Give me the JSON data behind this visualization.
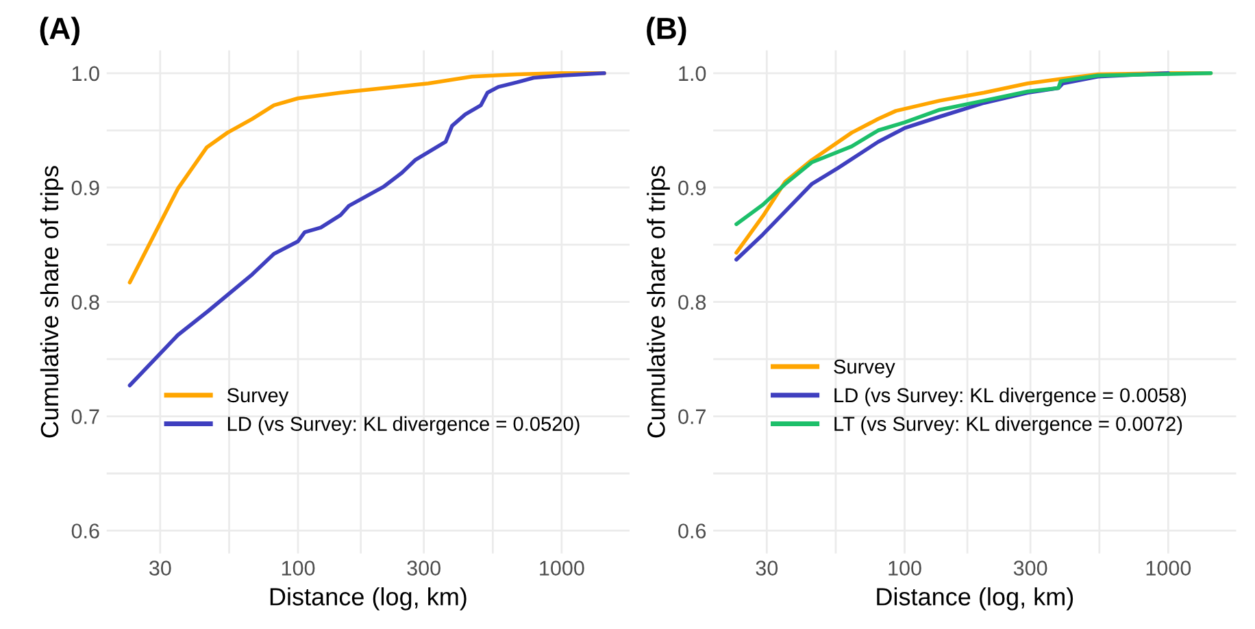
{
  "chart_data": [
    {
      "type": "line",
      "title": "(A)",
      "xlabel": "Distance (log, km)",
      "ylabel": "Cumulative share of trips",
      "log": "x",
      "grid": true,
      "legend": "bottom left",
      "xlim": [
        18.8,
        1810
      ],
      "ylim": [
        0.58,
        1.02
      ],
      "xticks": [
        30,
        {
          "value": 54.8,
          "label": null
        },
        100,
        {
          "value": 173,
          "label": null
        },
        300,
        {
          "value": 548,
          "label": null
        },
        1000
      ],
      "yticks": [
        0.6,
        {
          "value": 0.65,
          "label": null
        },
        0.7,
        {
          "value": 0.75,
          "label": null
        },
        0.8,
        {
          "value": 0.85,
          "label": null
        },
        0.9,
        {
          "value": 0.95,
          "label": null
        },
        {
          "value": 1.0,
          "label": "1.0"
        }
      ],
      "series": [
        {
          "name": "Survey",
          "color": "#ffa500",
          "x": [
            23,
            35,
            45,
            54,
            67,
            81,
            100,
            145,
            212,
            312,
            457,
            676,
            1000,
            1450
          ],
          "values": [
            0.817,
            0.899,
            0.935,
            0.948,
            0.96,
            0.972,
            0.978,
            0.983,
            0.987,
            0.991,
            0.997,
            0.999,
            1.0,
            1.0
          ]
        },
        {
          "name": "LD (vs Survey: KL divergence = 0.0520)",
          "color": "#3f3fbf",
          "x": [
            23,
            35,
            45.6,
            67,
            81,
            100,
            106,
            122,
            145,
            156,
            212,
            248,
            278,
            363,
            384,
            431,
            494,
            523,
            575,
            676,
            783,
            1000,
            1450
          ],
          "values": [
            0.727,
            0.771,
            0.792,
            0.824,
            0.842,
            0.853,
            0.861,
            0.865,
            0.876,
            0.884,
            0.901,
            0.913,
            0.924,
            0.94,
            0.954,
            0.964,
            0.972,
            0.983,
            0.988,
            0.992,
            0.996,
            0.998,
            1.0
          ]
        }
      ]
    },
    {
      "type": "line",
      "title": "(B)",
      "xlabel": "Distance (log, km)",
      "ylabel": "Cumulative share of trips",
      "log": "x",
      "grid": true,
      "legend": "bottom left",
      "xlim": [
        18.8,
        1810
      ],
      "ylim": [
        0.58,
        1.02
      ],
      "xticks": [
        30,
        {
          "value": 54.8,
          "label": null
        },
        100,
        {
          "value": 173,
          "label": null
        },
        300,
        {
          "value": 548,
          "label": null
        },
        1000
      ],
      "yticks": [
        0.6,
        {
          "value": 0.65,
          "label": null
        },
        0.7,
        {
          "value": 0.75,
          "label": null
        },
        0.8,
        {
          "value": 0.85,
          "label": null
        },
        0.9,
        {
          "value": 0.95,
          "label": null
        },
        {
          "value": 1.0,
          "label": "1.0"
        }
      ],
      "series": [
        {
          "name": "Survey",
          "color": "#ffa500",
          "x": [
            23,
            29,
            35.2,
            44.4,
            63,
            79.4,
            92.6,
            136,
            200,
            293,
            391,
            541,
            1000,
            1450
          ],
          "values": [
            0.843,
            0.875,
            0.905,
            0.924,
            0.948,
            0.96,
            0.967,
            0.976,
            0.983,
            0.991,
            0.995,
            0.999,
            1.0,
            1.0
          ]
        },
        {
          "name": "LD (vs Survey: KL divergence = 0.0058)",
          "color": "#3f3fbf",
          "x": [
            23,
            29,
            44.4,
            55.8,
            79.4,
            100,
            136,
            200,
            293,
            383,
            398,
            541,
            1000
          ],
          "values": [
            0.837,
            0.859,
            0.903,
            0.917,
            0.94,
            0.952,
            0.962,
            0.974,
            0.983,
            0.987,
            0.991,
            0.997,
            1.0
          ]
        },
        {
          "name": "LT (vs Survey: KL divergence = 0.0072)",
          "color": "#1dbf6a",
          "x": [
            23,
            29,
            35.2,
            44.4,
            63,
            79.4,
            100,
            136,
            200,
            293,
            383,
            391,
            541,
            1450
          ],
          "values": [
            0.868,
            0.885,
            0.903,
            0.922,
            0.936,
            0.95,
            0.957,
            0.968,
            0.976,
            0.984,
            0.987,
            0.993,
            0.998,
            1.0
          ]
        }
      ]
    }
  ]
}
